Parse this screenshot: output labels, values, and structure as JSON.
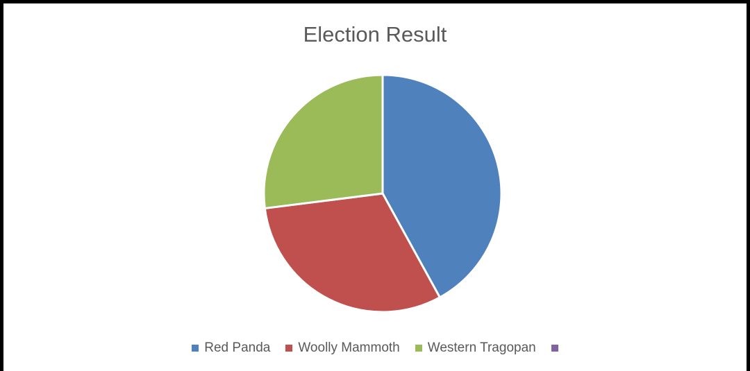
{
  "chart_data": {
    "type": "pie",
    "title": "Election Result",
    "categories": [
      "Red Panda",
      "Woolly Mammoth",
      "Western Tragopan",
      ""
    ],
    "values": [
      42,
      31,
      27,
      0
    ],
    "colors": [
      "#4f81bd",
      "#c0504d",
      "#9bbb59",
      "#8064a2"
    ],
    "legend_position": "bottom"
  }
}
